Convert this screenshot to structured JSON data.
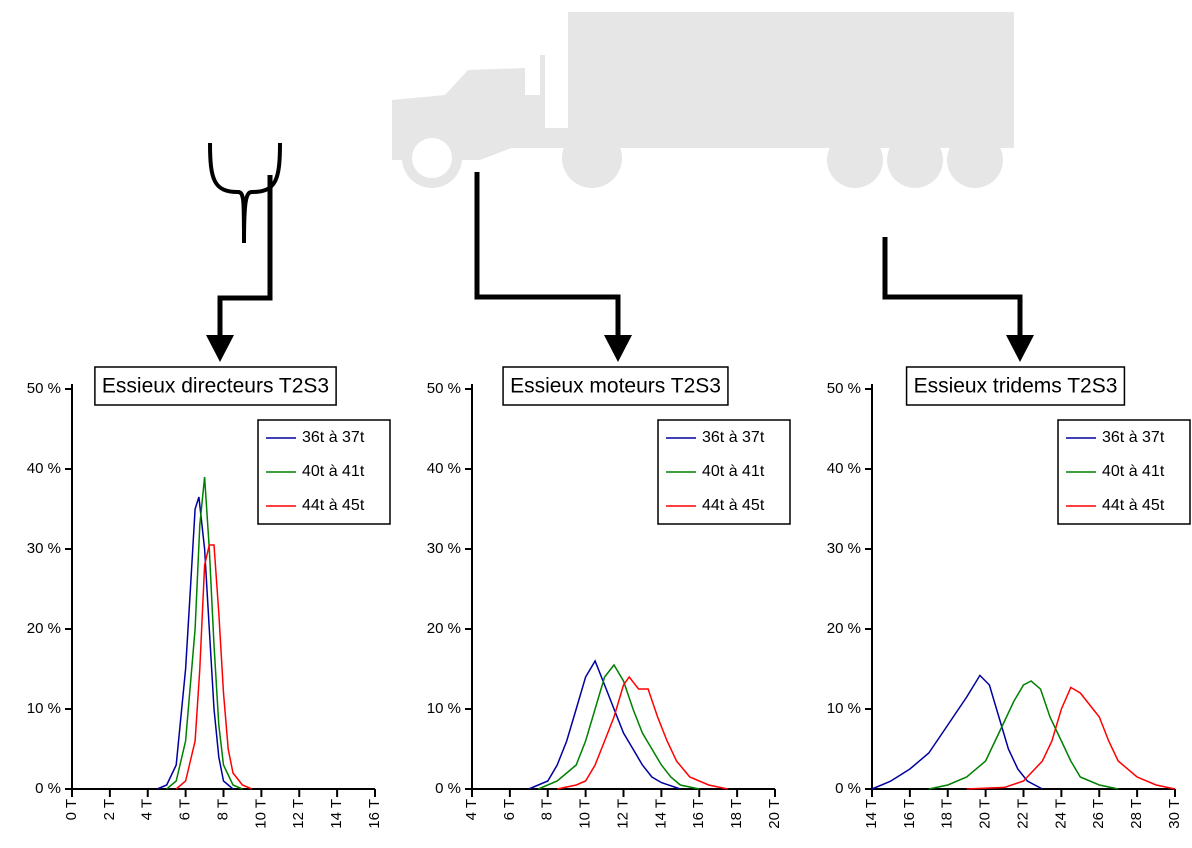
{
  "chart_data": [
    {
      "type": "line",
      "title": "Essieux directeurs T2S3",
      "xlim": [
        0,
        16
      ],
      "ylim": [
        0,
        50
      ],
      "xticks": [
        {
          "value": 0,
          "label": "0 T"
        },
        {
          "value": 2,
          "label": "2 T"
        },
        {
          "value": 4,
          "label": "4 T"
        },
        {
          "value": 6,
          "label": "6 T"
        },
        {
          "value": 8,
          "label": "8 T"
        },
        {
          "value": 10,
          "label": "10 T"
        },
        {
          "value": 12,
          "label": "12 T"
        },
        {
          "value": 14,
          "label": "14 T"
        },
        {
          "value": 16,
          "label": "16 T"
        }
      ],
      "yticks": [
        {
          "value": 0,
          "label": "0 %"
        },
        {
          "value": 10,
          "label": "10 %"
        },
        {
          "value": 20,
          "label": "20 %"
        },
        {
          "value": 30,
          "label": "30 %"
        },
        {
          "value": 40,
          "label": "40 %"
        },
        {
          "value": 50,
          "label": "50 %"
        }
      ],
      "series": [
        {
          "name": "36t à 37t",
          "color": "#0000a0",
          "x": [
            4.5,
            5,
            5.5,
            6,
            6.25,
            6.5,
            6.7,
            7,
            7.25,
            7.5,
            7.75,
            8,
            8.5
          ],
          "values": [
            0,
            0.5,
            3,
            15,
            25,
            35,
            36.5,
            30,
            20,
            10,
            4,
            1,
            0
          ]
        },
        {
          "name": "40t à 41t",
          "color": "#008000",
          "x": [
            5,
            5.5,
            6,
            6.5,
            6.75,
            7,
            7.25,
            7.5,
            7.75,
            8,
            8.5,
            9
          ],
          "values": [
            0,
            1,
            6,
            20,
            33,
            39,
            30,
            18,
            8,
            3,
            0.5,
            0
          ]
        },
        {
          "name": "44t à 45t",
          "color": "#ff0000",
          "x": [
            5.5,
            6,
            6.5,
            6.75,
            7,
            7.25,
            7.5,
            7.75,
            8,
            8.25,
            8.5,
            9,
            9.5
          ],
          "values": [
            0,
            1,
            6,
            15,
            28,
            30.5,
            30.5,
            22,
            12,
            5,
            2,
            0.5,
            0
          ]
        }
      ]
    },
    {
      "type": "line",
      "title": "Essieux moteurs T2S3",
      "xlim": [
        4,
        20
      ],
      "ylim": [
        0,
        50
      ],
      "xticks": [
        {
          "value": 4,
          "label": "4 T"
        },
        {
          "value": 6,
          "label": "6 T"
        },
        {
          "value": 8,
          "label": "8 T"
        },
        {
          "value": 10,
          "label": "10 T"
        },
        {
          "value": 12,
          "label": "12 T"
        },
        {
          "value": 14,
          "label": "14 T"
        },
        {
          "value": 16,
          "label": "16 T"
        },
        {
          "value": 18,
          "label": "18 T"
        },
        {
          "value": 20,
          "label": "20 T"
        }
      ],
      "yticks": [
        {
          "value": 0,
          "label": "0 %"
        },
        {
          "value": 10,
          "label": "10 %"
        },
        {
          "value": 20,
          "label": "20 %"
        },
        {
          "value": 30,
          "label": "30 %"
        },
        {
          "value": 40,
          "label": "40 %"
        },
        {
          "value": 50,
          "label": "50 %"
        }
      ],
      "series": [
        {
          "name": "36t à 37t",
          "color": "#0000a0",
          "x": [
            7,
            8,
            8.5,
            9,
            9.5,
            10,
            10.5,
            11,
            11.5,
            12,
            12.5,
            13,
            13.5,
            14,
            15
          ],
          "values": [
            0,
            1,
            3,
            6,
            10,
            14,
            16,
            13,
            10,
            7,
            5,
            3,
            1.5,
            0.8,
            0
          ]
        },
        {
          "name": "40t à 41t",
          "color": "#008000",
          "x": [
            7.5,
            8.5,
            9,
            9.5,
            10,
            10.5,
            11,
            11.5,
            12,
            12.5,
            13,
            13.5,
            14,
            14.5,
            15,
            16
          ],
          "values": [
            0,
            1,
            2,
            3,
            6,
            10,
            14,
            15.5,
            13.5,
            10,
            7,
            5,
            3,
            1.5,
            0.5,
            0
          ]
        },
        {
          "name": "44t à 45t",
          "color": "#ff0000",
          "x": [
            8.5,
            9.5,
            10,
            10.5,
            11,
            11.5,
            12,
            12.3,
            12.8,
            13.3,
            13.8,
            14.3,
            14.8,
            15.5,
            16.5,
            17.5
          ],
          "values": [
            0,
            0.5,
            1,
            3,
            6,
            9,
            13,
            14,
            12.5,
            12.5,
            9,
            6,
            3.5,
            1.5,
            0.5,
            0
          ]
        }
      ]
    },
    {
      "type": "line",
      "title": "Essieux tridems T2S3",
      "xlim": [
        14,
        30
      ],
      "ylim": [
        0,
        50
      ],
      "xticks": [
        {
          "value": 14,
          "label": "14 T"
        },
        {
          "value": 16,
          "label": "16 T"
        },
        {
          "value": 18,
          "label": "18 T"
        },
        {
          "value": 20,
          "label": "20 T"
        },
        {
          "value": 22,
          "label": "22 T"
        },
        {
          "value": 24,
          "label": "24 T"
        },
        {
          "value": 26,
          "label": "26 T"
        },
        {
          "value": 28,
          "label": "28 T"
        },
        {
          "value": 30,
          "label": "30 T"
        }
      ],
      "yticks": [
        {
          "value": 0,
          "label": "0 %"
        },
        {
          "value": 10,
          "label": "10 %"
        },
        {
          "value": 20,
          "label": "20 %"
        },
        {
          "value": 30,
          "label": "30 %"
        },
        {
          "value": 40,
          "label": "40 %"
        },
        {
          "value": 50,
          "label": "50 %"
        }
      ],
      "series": [
        {
          "name": "36t à 37t",
          "color": "#0000a0",
          "x": [
            14,
            15,
            16,
            17,
            18,
            19,
            19.7,
            20.2,
            20.7,
            21.2,
            21.7,
            22.2,
            23
          ],
          "values": [
            0,
            1,
            2.5,
            4.5,
            8,
            11.5,
            14.2,
            13,
            9,
            5,
            2.5,
            1,
            0
          ]
        },
        {
          "name": "40t à 41t",
          "color": "#008000",
          "x": [
            17,
            18,
            19,
            20,
            20.5,
            21,
            21.5,
            22,
            22.4,
            22.9,
            23.4,
            24,
            24.5,
            25,
            26,
            27
          ],
          "values": [
            0,
            0.5,
            1.5,
            3.5,
            6,
            8.5,
            11,
            13,
            13.5,
            12.5,
            9,
            6,
            3.5,
            1.5,
            0.5,
            0
          ]
        },
        {
          "name": "44t à 45t",
          "color": "#ff0000",
          "x": [
            19,
            21,
            22,
            23,
            23.5,
            24,
            24.5,
            25,
            25.5,
            26,
            26.5,
            27,
            28,
            29,
            30
          ],
          "values": [
            0,
            0.2,
            1,
            3.5,
            6,
            10,
            12.7,
            12,
            10.5,
            9,
            6,
            3.5,
            1.5,
            0.5,
            0
          ]
        }
      ]
    }
  ]
}
